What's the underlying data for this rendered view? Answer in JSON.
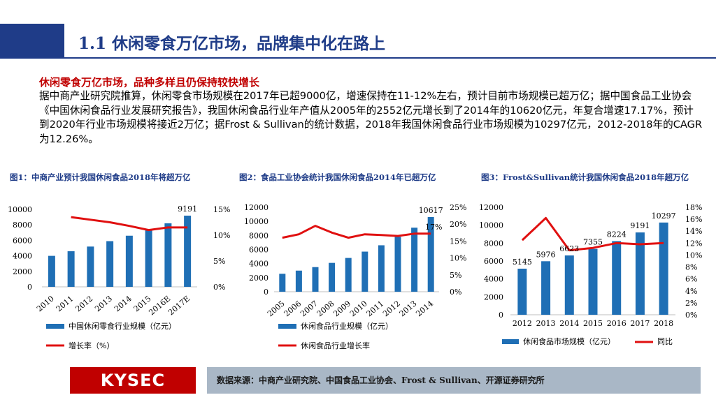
{
  "header": {
    "title": "1.1 休闲零食万亿市场，品牌集中化在路上"
  },
  "section": {
    "subtitle": "休闲零食万亿市场，品种多样且仍保持较快增长",
    "paragraph": "据中商产业研究院推算，休闲零食市场规模在2017年已超9000亿，增速保持在11-12%左右，预计目前市场规模已超万亿；据中国食品工业协会《中国休闲食品行业发展研究报告》，我国休闲食品行业年产值从2005年的2552亿元增长到了2014年的10620亿元，年复合增速17.17%，预计到2020年行业市场规模将接近2万亿；据Frost & Sullivan的统计数据，2018年我国休闲食品行业市场规模为10297亿元，2012-2018年的CAGR为12.26%。"
  },
  "colors": {
    "bar": "#1f6fb5",
    "line": "#e01010",
    "brand": "#1f3c88",
    "red": "#c00000"
  },
  "chart_data": [
    {
      "type": "bar",
      "title": "图1：中商产业预计我国休闲食品2018年将超万亿",
      "categories": [
        "2010",
        "2011",
        "2012",
        "2013",
        "2014",
        "2015",
        "2016E",
        "2017E"
      ],
      "series": [
        {
          "name": "中国休闲零食行业规模（亿元）",
          "type": "bar",
          "axis": "left",
          "values": [
            4000,
            4600,
            5200,
            5900,
            6600,
            7400,
            8200,
            9191
          ]
        },
        {
          "name": "增长率（%）",
          "type": "line",
          "axis": "right",
          "values": [
            null,
            13.5,
            13.0,
            12.5,
            11.8,
            11.0,
            11.5,
            11.5
          ]
        }
      ],
      "data_labels": [
        {
          "index": 7,
          "text": "9191"
        }
      ],
      "y_left": {
        "min": 0,
        "max": 10000,
        "ticks": [
          "0",
          "2000",
          "4000",
          "6000",
          "8000",
          "10000"
        ]
      },
      "y_right": {
        "min": 0,
        "max": 15,
        "ticks": [
          "0%",
          "5%",
          "10%",
          "15%"
        ]
      },
      "legend": [
        "中国休闲零食行业规模（亿元）",
        "增长率（%）"
      ]
    },
    {
      "type": "bar",
      "title": "图2：食品工业协会统计我国休闲食品2014年已超万亿",
      "categories": [
        "2005",
        "2006",
        "2007",
        "2008",
        "2009",
        "2010",
        "2011",
        "2012",
        "2013",
        "2014"
      ],
      "series": [
        {
          "name": "休闲食品行业规模（亿元）",
          "type": "bar",
          "axis": "left",
          "values": [
            2552,
            3000,
            3500,
            4100,
            4800,
            5700,
            6600,
            7800,
            9100,
            10617
          ]
        },
        {
          "name": "休闲食品行业增长率",
          "type": "line",
          "axis": "right",
          "values": [
            16,
            17,
            19.5,
            17.5,
            16,
            17,
            16.8,
            16.5,
            17.2,
            17.2
          ]
        }
      ],
      "data_labels": [
        {
          "index": 9,
          "text": "10617"
        },
        {
          "index": 9,
          "text": "17%"
        }
      ],
      "y_left": {
        "min": 0,
        "max": 12000,
        "ticks": [
          "0",
          "2000",
          "4000",
          "6000",
          "8000",
          "10000",
          "12000"
        ]
      },
      "y_right": {
        "min": 0,
        "max": 25,
        "ticks": [
          "0%",
          "5%",
          "10%",
          "15%",
          "20%",
          "25%"
        ]
      },
      "legend": [
        "休闲食品行业规模（亿元）",
        "休闲食品行业增长率"
      ]
    },
    {
      "type": "bar",
      "title": "图3：Frost&Sullivan统计我国休闲食品2018年超万亿",
      "categories": [
        "2012",
        "2013",
        "2014",
        "2015",
        "2016",
        "2017",
        "2018"
      ],
      "series": [
        {
          "name": "休闲食品市场规模（亿元）",
          "type": "bar",
          "axis": "left",
          "values": [
            5145,
            5976,
            6623,
            7355,
            8224,
            9191,
            10297
          ]
        },
        {
          "name": "同比",
          "type": "line",
          "axis": "right",
          "values": [
            12.5,
            16.2,
            10.8,
            11.2,
            12.0,
            11.8,
            12.0
          ]
        }
      ],
      "data_labels": [
        {
          "index": 0,
          "text": "5145"
        },
        {
          "index": 1,
          "text": "5976"
        },
        {
          "index": 2,
          "text": "6623"
        },
        {
          "index": 3,
          "text": "7355"
        },
        {
          "index": 4,
          "text": "8224"
        },
        {
          "index": 5,
          "text": "9191"
        },
        {
          "index": 6,
          "text": "10297"
        }
      ],
      "y_left": {
        "min": 0,
        "max": 12000,
        "ticks": [
          "0",
          "2000",
          "4000",
          "6000",
          "8000",
          "10000",
          "12000"
        ]
      },
      "y_right": {
        "min": 0,
        "max": 18,
        "ticks": [
          "0%",
          "2%",
          "4%",
          "6%",
          "8%",
          "10%",
          "12%",
          "14%",
          "16%",
          "18%"
        ]
      },
      "legend": [
        "休闲食品市场规模（亿元）",
        "同比"
      ]
    }
  ],
  "footer": {
    "logo": "KYSEC",
    "source": "数据来源：中商产业研究院、中国食品工业协会、Frost & Sullivan、开源证券研究所"
  }
}
